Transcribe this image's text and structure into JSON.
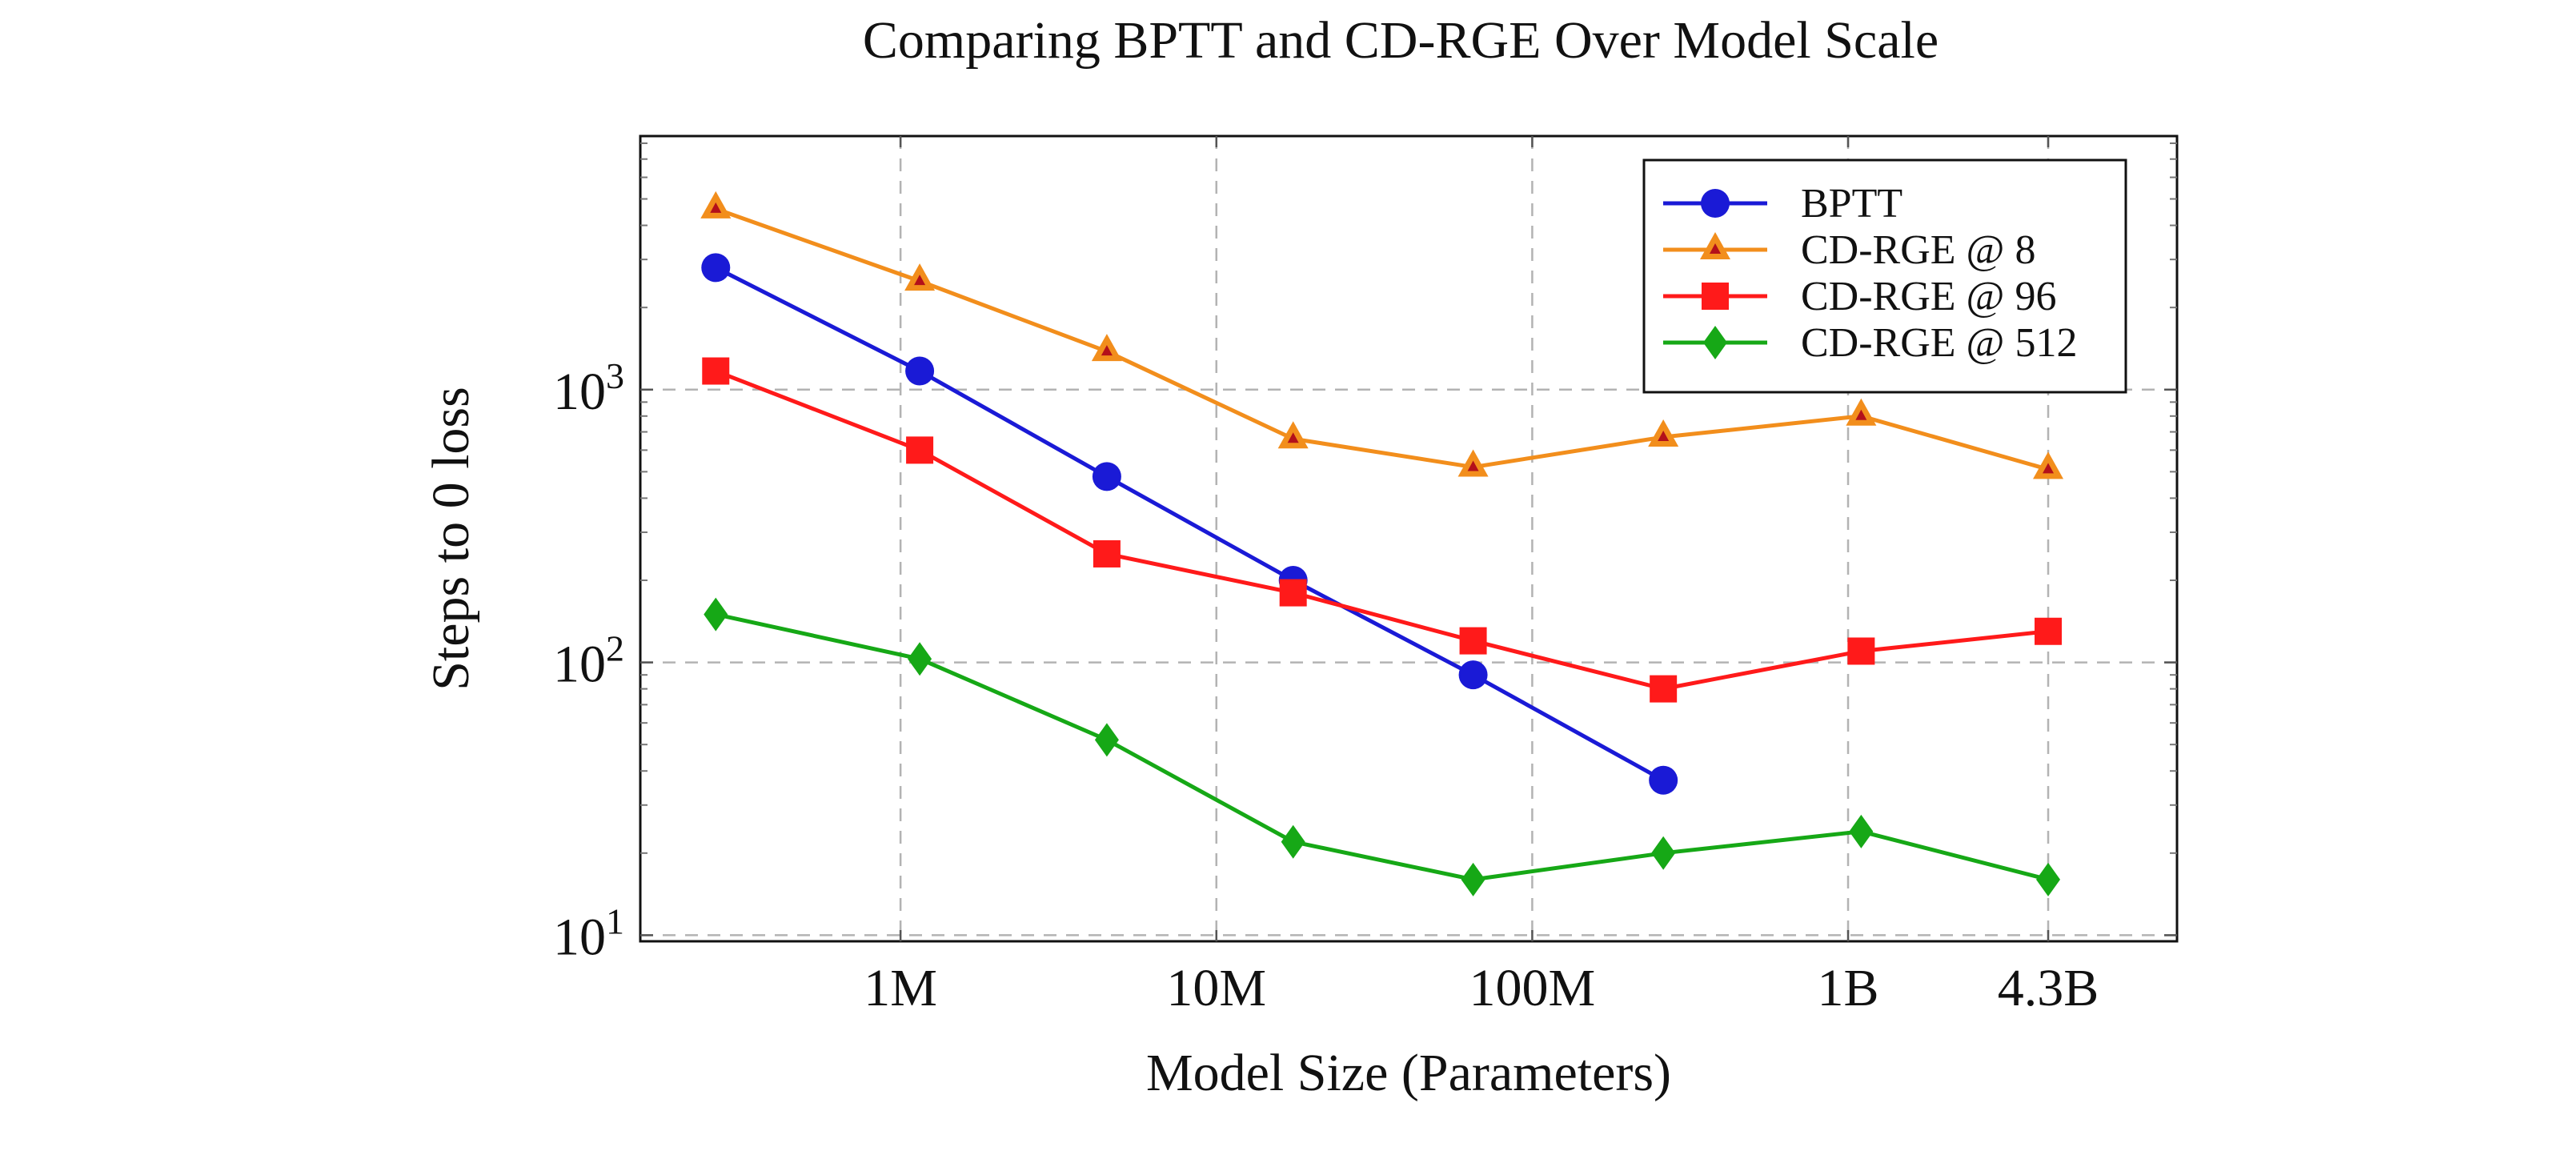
{
  "chart_data": {
    "type": "line",
    "title": "Comparing BPTT and CD-RGE Over Model Scale",
    "xlabel": "Model Size (Parameters)",
    "ylabel": "Steps to 0 loss",
    "xscale": "log",
    "yscale": "log",
    "xlim": [
      150000,
      11000000000
    ],
    "ylim": [
      9.5,
      8500
    ],
    "grid": true,
    "legend_position": "top-right",
    "x_ticks": [
      {
        "value": 1000000,
        "label": "1M"
      },
      {
        "value": 10000000,
        "label": "10M"
      },
      {
        "value": 100000000,
        "label": "100M"
      },
      {
        "value": 1000000000,
        "label": "1B"
      },
      {
        "value": 4300000000,
        "label": "4.3B"
      }
    ],
    "y_ticks": [
      {
        "value": 10,
        "base": "10",
        "exp": "1"
      },
      {
        "value": 100,
        "base": "10",
        "exp": "2"
      },
      {
        "value": 1000,
        "base": "10",
        "exp": "3"
      }
    ],
    "x": [
      260000,
      1150000,
      4500000,
      17500000,
      65000000,
      260000000,
      1100000000,
      4300000000
    ],
    "series": [
      {
        "name": "BPTT",
        "color": "#1a1ad6",
        "marker": "circle",
        "values": [
          2800,
          1170,
          480,
          200,
          90,
          37,
          null,
          null
        ]
      },
      {
        "name": "CD-RGE @ 8",
        "color": "#f28e1c",
        "marker": "triangle",
        "values": [
          4600,
          2500,
          1380,
          660,
          520,
          670,
          800,
          510
        ]
      },
      {
        "name": "CD-RGE @ 96",
        "color": "#ff1a1a",
        "marker": "square",
        "values": [
          1170,
          600,
          250,
          180,
          120,
          80,
          110,
          130
        ]
      },
      {
        "name": "CD-RGE @ 512",
        "color": "#16a816",
        "marker": "diamond",
        "values": [
          150,
          103,
          52,
          22,
          16,
          20,
          24,
          16
        ]
      }
    ]
  }
}
